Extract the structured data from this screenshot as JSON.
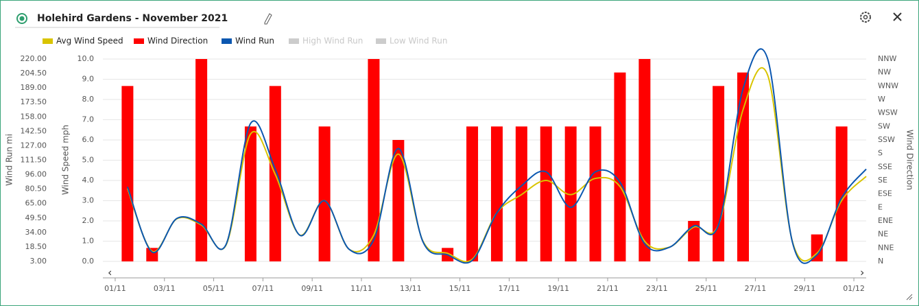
{
  "title": "Holehird Gardens - November 2021",
  "chart_data": {
    "type": "combo",
    "x": [
      0.5,
      1.5,
      2.5,
      3.5,
      4.5,
      5.5,
      6.5,
      7.5,
      8.5,
      9.5,
      10.5,
      11.5,
      12.5,
      13.5,
      14.5,
      15.5,
      16.5,
      17.5,
      18.5,
      19.5,
      20.5,
      21.5,
      22.5,
      23.5,
      24.5,
      25.5,
      26.5,
      27.5,
      28.5,
      29.5,
      30.5
    ],
    "xlim": [
      -0.5,
      30.5
    ],
    "xticks": [
      {
        "value": 0,
        "label": "01/11"
      },
      {
        "value": 2,
        "label": "03/11"
      },
      {
        "value": 4,
        "label": "05/11"
      },
      {
        "value": 6,
        "label": "07/11"
      },
      {
        "value": 8,
        "label": "09/11"
      },
      {
        "value": 10,
        "label": "11/11"
      },
      {
        "value": 12,
        "label": "13/11"
      },
      {
        "value": 14,
        "label": "15/11"
      },
      {
        "value": 16,
        "label": "17/11"
      },
      {
        "value": 18,
        "label": "19/11"
      },
      {
        "value": 20,
        "label": "21/11"
      },
      {
        "value": 22,
        "label": "23/11"
      },
      {
        "value": 24,
        "label": "25/11"
      },
      {
        "value": 26,
        "label": "27/11"
      },
      {
        "value": 28,
        "label": "29/11"
      },
      {
        "value": 30,
        "label": "01/12"
      }
    ],
    "ylabel": "Wind Speed mph",
    "ylim": [
      0,
      10
    ],
    "yticks": [
      {
        "value": 0,
        "label": "0.0"
      },
      {
        "value": 1,
        "label": "1.0"
      },
      {
        "value": 2,
        "label": "2.0"
      },
      {
        "value": 3,
        "label": "3.0"
      },
      {
        "value": 4,
        "label": "4.0"
      },
      {
        "value": 5,
        "label": "5.0"
      },
      {
        "value": 6,
        "label": "6.0"
      },
      {
        "value": 7,
        "label": "7.0"
      },
      {
        "value": 8,
        "label": "8.0"
      },
      {
        "value": 9,
        "label": "9.0"
      },
      {
        "value": 10,
        "label": "10.0"
      }
    ],
    "y2label": "Wind Direction",
    "y2lim": [
      0,
      337.5
    ],
    "y2ticks": [
      {
        "value": 0,
        "label": "N"
      },
      {
        "value": 22.5,
        "label": "NNE"
      },
      {
        "value": 45,
        "label": "NE"
      },
      {
        "value": 67.5,
        "label": "ENE"
      },
      {
        "value": 90,
        "label": "E"
      },
      {
        "value": 112.5,
        "label": "ESE"
      },
      {
        "value": 135,
        "label": "SE"
      },
      {
        "value": 157.5,
        "label": "SSE"
      },
      {
        "value": 180,
        "label": "S"
      },
      {
        "value": 202.5,
        "label": "SSW"
      },
      {
        "value": 225,
        "label": "SW"
      },
      {
        "value": 247.5,
        "label": "WSW"
      },
      {
        "value": 270,
        "label": "W"
      },
      {
        "value": 292.5,
        "label": "WNW"
      },
      {
        "value": 315,
        "label": "NW"
      },
      {
        "value": 337.5,
        "label": "NNW"
      }
    ],
    "y3label": "Wind Run mi",
    "y3lim": [
      3,
      220
    ],
    "y3ticks": [
      {
        "value": 3,
        "label": "3.00"
      },
      {
        "value": 18.5,
        "label": "18.50"
      },
      {
        "value": 34,
        "label": "34.00"
      },
      {
        "value": 49.5,
        "label": "49.50"
      },
      {
        "value": 65,
        "label": "65.00"
      },
      {
        "value": 80.5,
        "label": "80.50"
      },
      {
        "value": 96,
        "label": "96.00"
      },
      {
        "value": 111.5,
        "label": "111.50"
      },
      {
        "value": 127,
        "label": "127.00"
      },
      {
        "value": 142.5,
        "label": "142.50"
      },
      {
        "value": 158,
        "label": "158.00"
      },
      {
        "value": 173.5,
        "label": "173.50"
      },
      {
        "value": 189,
        "label": "189.00"
      },
      {
        "value": 204.5,
        "label": "204.50"
      },
      {
        "value": 220,
        "label": "220.00"
      }
    ],
    "grid": true,
    "series": [
      {
        "name": "Avg Wind Speed",
        "type": "line",
        "color": "#d9c400",
        "values": [
          3.6,
          0.5,
          2.1,
          1.8,
          0.8,
          6.3,
          4.3,
          1.3,
          3.0,
          0.6,
          1.3,
          5.3,
          1.0,
          0.4,
          0.1,
          2.4,
          3.3,
          4.0,
          3.3,
          4.1,
          3.7,
          1.0,
          0.7,
          1.7,
          1.8,
          7.5,
          9.2,
          1.0,
          0.4,
          3.0,
          4.2
        ]
      },
      {
        "name": "Wind Direction",
        "type": "bar",
        "axis": "y2",
        "color": "#ff0000",
        "values": [
          292.5,
          22.5,
          null,
          337.5,
          null,
          225,
          292.5,
          null,
          225,
          null,
          337.5,
          202.5,
          null,
          22.5,
          225,
          225,
          225,
          225,
          225,
          225,
          315,
          337.5,
          null,
          67.5,
          292.5,
          315,
          null,
          null,
          45,
          225,
          null
        ]
      },
      {
        "name": "Wind Run",
        "type": "line",
        "axis": "y3",
        "color": "#0b57b0",
        "values": [
          83,
          13,
          49,
          43,
          21,
          151,
          102,
          31,
          68,
          16,
          26,
          124,
          24,
          10,
          4,
          55,
          84,
          99,
          61,
          99,
          88,
          22,
          18,
          41,
          42,
          188,
          220,
          24,
          10,
          71,
          102
        ]
      }
    ],
    "hidden_series": [
      {
        "name": "High Wind Run",
        "color": "#cccccc"
      },
      {
        "name": "Low Wind Run",
        "color": "#cccccc"
      }
    ]
  }
}
